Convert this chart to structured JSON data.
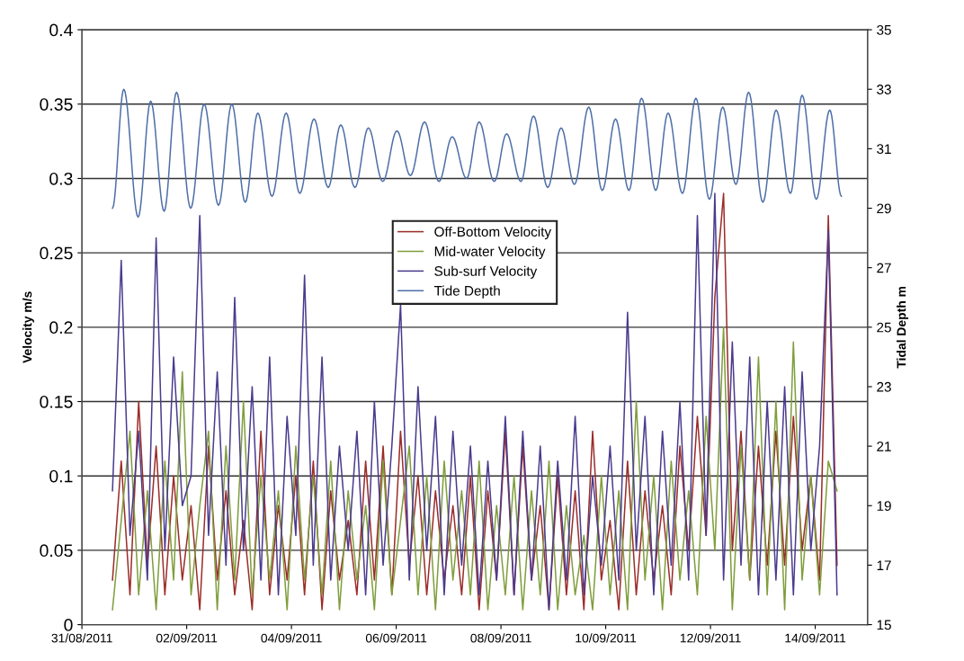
{
  "chart_data": {
    "type": "line",
    "ylabel": "Velocity m/s",
    "y2label": "Tidal Depth m",
    "x": [
      "2011-08-31T14:00",
      "2011-08-31T18:00",
      "2011-08-31T22:00",
      "2011-09-01T02:00",
      "2011-09-01T06:00",
      "2011-09-01T10:00",
      "2011-09-01T14:00",
      "2011-09-01T18:00",
      "2011-09-01T22:00",
      "2011-09-02T02:00",
      "2011-09-02T06:00",
      "2011-09-02T10:00",
      "2011-09-02T14:00",
      "2011-09-02T18:00",
      "2011-09-02T22:00",
      "2011-09-03T02:00",
      "2011-09-03T06:00",
      "2011-09-03T10:00",
      "2011-09-03T14:00",
      "2011-09-03T18:00",
      "2011-09-03T22:00",
      "2011-09-04T02:00",
      "2011-09-04T06:00",
      "2011-09-04T10:00",
      "2011-09-04T14:00",
      "2011-09-04T18:00",
      "2011-09-04T22:00",
      "2011-09-05T02:00",
      "2011-09-05T06:00",
      "2011-09-05T10:00",
      "2011-09-05T14:00",
      "2011-09-05T18:00",
      "2011-09-05T22:00",
      "2011-09-06T02:00",
      "2011-09-06T06:00",
      "2011-09-06T10:00",
      "2011-09-06T14:00",
      "2011-09-06T18:00",
      "2011-09-06T22:00",
      "2011-09-07T02:00",
      "2011-09-07T06:00",
      "2011-09-07T10:00",
      "2011-09-07T14:00",
      "2011-09-07T18:00",
      "2011-09-07T22:00",
      "2011-09-08T02:00",
      "2011-09-08T06:00",
      "2011-09-08T10:00",
      "2011-09-08T14:00",
      "2011-09-08T18:00",
      "2011-09-08T22:00",
      "2011-09-09T02:00",
      "2011-09-09T06:00",
      "2011-09-09T10:00",
      "2011-09-09T14:00",
      "2011-09-09T18:00",
      "2011-09-09T22:00",
      "2011-09-10T02:00",
      "2011-09-10T06:00",
      "2011-09-10T10:00",
      "2011-09-10T14:00",
      "2011-09-10T18:00",
      "2011-09-10T22:00",
      "2011-09-11T02:00",
      "2011-09-11T06:00",
      "2011-09-11T10:00",
      "2011-09-11T14:00",
      "2011-09-11T18:00",
      "2011-09-11T22:00",
      "2011-09-12T02:00",
      "2011-09-12T06:00",
      "2011-09-12T10:00",
      "2011-09-12T14:00",
      "2011-09-12T18:00",
      "2011-09-12T22:00",
      "2011-09-13T02:00",
      "2011-09-13T06:00",
      "2011-09-13T10:00",
      "2011-09-13T14:00",
      "2011-09-13T18:00",
      "2011-09-13T22:00",
      "2011-09-14T02:00",
      "2011-09-14T06:00",
      "2011-09-14T10:00"
    ],
    "series": [
      {
        "name": "Off-Bottom Velocity",
        "color": "#9b2d2a",
        "values": [
          0.03,
          0.11,
          0.02,
          0.15,
          0.04,
          0.12,
          0.02,
          0.1,
          0.03,
          0.08,
          0.01,
          0.12,
          0.03,
          0.09,
          0.02,
          0.07,
          0.01,
          0.13,
          0.02,
          0.08,
          0.03,
          0.1,
          0.02,
          0.11,
          0.01,
          0.09,
          0.03,
          0.07,
          0.02,
          0.11,
          0.03,
          0.12,
          0.02,
          0.13,
          0.04,
          0.1,
          0.02,
          0.09,
          0.03,
          0.08,
          0.02,
          0.1,
          0.01,
          0.09,
          0.03,
          0.13,
          0.02,
          0.12,
          0.03,
          0.08,
          0.01,
          0.1,
          0.02,
          0.09,
          0.01,
          0.13,
          0.03,
          0.07,
          0.01,
          0.11,
          0.02,
          0.09,
          0.03,
          0.08,
          0.02,
          0.12,
          0.05,
          0.14,
          0.06,
          0.22,
          0.29,
          0.05,
          0.13,
          0.03,
          0.12,
          0.04,
          0.13,
          0.04,
          0.14,
          0.05,
          0.1,
          0.03,
          0.275,
          0.04
        ]
      },
      {
        "name": "Mid-water Velocity",
        "color": "#7f9e3c",
        "values": [
          0.01,
          0.07,
          0.13,
          0.02,
          0.09,
          0.01,
          0.11,
          0.03,
          0.17,
          0.02,
          0.08,
          0.13,
          0.01,
          0.12,
          0.03,
          0.15,
          0.02,
          0.1,
          0.03,
          0.09,
          0.01,
          0.12,
          0.03,
          0.1,
          0.02,
          0.11,
          0.01,
          0.09,
          0.03,
          0.08,
          0.01,
          0.11,
          0.02,
          0.07,
          0.12,
          0.02,
          0.1,
          0.01,
          0.11,
          0.03,
          0.09,
          0.02,
          0.11,
          0.01,
          0.08,
          0.02,
          0.1,
          0.01,
          0.09,
          0.02,
          0.11,
          0.01,
          0.08,
          0.02,
          0.06,
          0.01,
          0.1,
          0.02,
          0.09,
          0.01,
          0.15,
          0.03,
          0.1,
          0.01,
          0.11,
          0.03,
          0.09,
          0.02,
          0.14,
          0.05,
          0.2,
          0.01,
          0.12,
          0.03,
          0.18,
          0.02,
          0.15,
          0.01,
          0.19,
          0.03,
          0.1,
          0.02,
          0.11,
          0.09
        ]
      },
      {
        "name": "Sub-surf Velocity",
        "color": "#4b3b8e",
        "values": [
          0.09,
          0.245,
          0.06,
          0.13,
          0.03,
          0.26,
          0.05,
          0.18,
          0.08,
          0.1,
          0.275,
          0.06,
          0.17,
          0.04,
          0.22,
          0.05,
          0.16,
          0.03,
          0.18,
          0.02,
          0.14,
          0.06,
          0.235,
          0.04,
          0.18,
          0.03,
          0.12,
          0.05,
          0.13,
          0.02,
          0.15,
          0.04,
          0.12,
          0.215,
          0.03,
          0.16,
          0.05,
          0.14,
          0.02,
          0.13,
          0.04,
          0.12,
          0.02,
          0.11,
          0.03,
          0.14,
          0.02,
          0.13,
          0.03,
          0.12,
          0.01,
          0.11,
          0.03,
          0.14,
          0.02,
          0.1,
          0.04,
          0.12,
          0.03,
          0.21,
          0.05,
          0.14,
          0.02,
          0.13,
          0.04,
          0.15,
          0.03,
          0.275,
          0.06,
          0.29,
          0.03,
          0.19,
          0.04,
          0.18,
          0.02,
          0.15,
          0.03,
          0.16,
          0.02,
          0.17,
          0.05,
          0.12,
          0.265,
          0.02
        ]
      },
      {
        "name": "Tide Depth",
        "color": "#4f6fa8",
        "axis": "y2",
        "x": [
          "2011-08-31T14:00",
          "2011-08-31T19:10",
          "2011-09-01T01:45",
          "2011-09-01T07:30",
          "2011-09-01T13:40",
          "2011-09-01T19:20",
          "2011-09-02T01:50",
          "2011-09-02T08:00",
          "2011-09-02T14:35",
          "2011-09-02T20:40",
          "2011-09-03T02:50",
          "2011-09-03T08:35",
          "2011-09-03T15:05",
          "2011-09-03T21:35",
          "2011-09-04T03:50",
          "2011-09-04T10:20",
          "2011-09-04T16:50",
          "2011-09-04T22:35",
          "2011-09-05T05:05",
          "2011-09-05T11:15",
          "2011-09-05T17:50",
          "2011-09-06T00:20",
          "2011-09-06T06:30",
          "2011-09-06T13:00",
          "2011-09-06T19:35",
          "2011-09-07T01:40",
          "2011-09-07T08:15",
          "2011-09-07T14:00",
          "2011-09-07T20:55",
          "2011-09-08T02:35",
          "2011-09-08T09:10",
          "2011-09-08T14:55",
          "2011-09-08T21:25",
          "2011-09-09T03:35",
          "2011-09-09T09:40",
          "2011-09-09T16:15",
          "2011-09-09T22:25",
          "2011-09-10T04:30",
          "2011-09-10T10:40",
          "2011-09-10T16:25",
          "2011-09-10T22:55",
          "2011-09-11T04:35",
          "2011-09-11T11:10",
          "2011-09-11T17:20",
          "2011-09-11T23:30",
          "2011-09-12T05:35",
          "2011-09-12T11:40",
          "2011-09-12T17:30",
          "2011-09-13T00:00",
          "2011-09-13T06:05",
          "2011-09-13T12:40",
          "2011-09-13T18:00",
          "2011-09-14T00:30",
          "2011-09-14T06:40",
          "2011-09-14T12:00"
        ],
        "values": [
          29.0,
          33.0,
          28.7,
          32.6,
          28.9,
          32.9,
          29.0,
          32.5,
          29.1,
          32.5,
          29.2,
          32.2,
          29.4,
          32.2,
          29.5,
          32.0,
          29.7,
          31.8,
          29.7,
          31.7,
          29.9,
          31.6,
          30.1,
          31.9,
          29.9,
          31.4,
          30.0,
          31.9,
          29.9,
          31.5,
          29.9,
          32.1,
          29.7,
          31.7,
          29.8,
          32.4,
          29.6,
          32.0,
          29.6,
          32.7,
          29.6,
          32.2,
          29.5,
          32.7,
          29.3,
          32.4,
          29.8,
          32.9,
          29.2,
          32.3,
          29.5,
          32.8,
          29.3,
          32.3,
          29.4
        ]
      }
    ],
    "xlim": [
      "2011-08-31",
      "2011-09-15"
    ],
    "xticks": [
      {
        "value": "2011-08-31",
        "label": "31/08/2011"
      },
      {
        "value": "2011-09-02",
        "label": "02/09/2011"
      },
      {
        "value": "2011-09-04",
        "label": "04/09/2011"
      },
      {
        "value": "2011-09-06",
        "label": "06/09/2011"
      },
      {
        "value": "2011-09-08",
        "label": "08/09/2011"
      },
      {
        "value": "2011-09-10",
        "label": "10/09/2011"
      },
      {
        "value": "2011-09-12",
        "label": "12/09/2011"
      },
      {
        "value": "2011-09-14",
        "label": "14/09/2011"
      }
    ],
    "ylim": [
      0,
      0.4
    ],
    "yticks": [
      0,
      0.05,
      0.1,
      0.15,
      0.2,
      0.25,
      0.3,
      0.35,
      0.4
    ],
    "y2lim": [
      15,
      35
    ],
    "y2ticks": [
      15,
      17,
      19,
      21,
      23,
      25,
      27,
      29,
      31,
      33,
      35
    ],
    "grid": "y",
    "legend": "top",
    "line_style": "solid"
  }
}
